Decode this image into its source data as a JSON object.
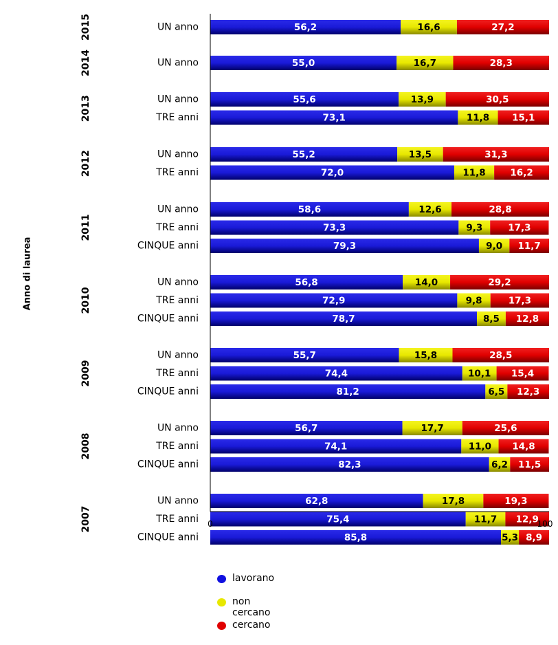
{
  "chart_data": {
    "type": "bar",
    "orientation": "horizontal",
    "stacked": true,
    "ylabel": "Anno di laurea",
    "xlim": [
      0,
      100
    ],
    "x_ticks": [
      "0",
      "100"
    ],
    "legend_position": "bottom-left",
    "colors": {
      "lavorano": "#1010e0",
      "non cercano": "#e8e800",
      "cercano": "#e00000"
    },
    "series_names": [
      "lavorano",
      "non cercano",
      "cercano"
    ],
    "groups": [
      {
        "year": "2015",
        "rows": [
          {
            "label": "UN anno",
            "values": [
              56.2,
              16.6,
              27.2
            ],
            "texts": [
              "56,2",
              "16,6",
              "27,2"
            ]
          }
        ]
      },
      {
        "year": "2014",
        "rows": [
          {
            "label": "UN anno",
            "values": [
              55.0,
              16.7,
              28.3
            ],
            "texts": [
              "55,0",
              "16,7",
              "28,3"
            ]
          }
        ]
      },
      {
        "year": "2013",
        "rows": [
          {
            "label": "UN anno",
            "values": [
              55.6,
              13.9,
              30.5
            ],
            "texts": [
              "55,6",
              "13,9",
              "30,5"
            ]
          },
          {
            "label": "TRE anni",
            "values": [
              73.1,
              11.8,
              15.1
            ],
            "texts": [
              "73,1",
              "11,8",
              "15,1"
            ]
          }
        ]
      },
      {
        "year": "2012",
        "rows": [
          {
            "label": "UN anno",
            "values": [
              55.2,
              13.5,
              31.3
            ],
            "texts": [
              "55,2",
              "13,5",
              "31,3"
            ]
          },
          {
            "label": "TRE anni",
            "values": [
              72.0,
              11.8,
              16.2
            ],
            "texts": [
              "72,0",
              "11,8",
              "16,2"
            ]
          }
        ]
      },
      {
        "year": "2011",
        "rows": [
          {
            "label": "UN anno",
            "values": [
              58.6,
              12.6,
              28.8
            ],
            "texts": [
              "58,6",
              "12,6",
              "28,8"
            ]
          },
          {
            "label": "TRE anni",
            "values": [
              73.3,
              9.3,
              17.3
            ],
            "texts": [
              "73,3",
              "9,3",
              "17,3"
            ]
          },
          {
            "label": "CINQUE anni",
            "values": [
              79.3,
              9.0,
              11.7
            ],
            "texts": [
              "79,3",
              "9,0",
              "11,7"
            ]
          }
        ]
      },
      {
        "year": "2010",
        "rows": [
          {
            "label": "UN anno",
            "values": [
              56.8,
              14.0,
              29.2
            ],
            "texts": [
              "56,8",
              "14,0",
              "29,2"
            ]
          },
          {
            "label": "TRE anni",
            "values": [
              72.9,
              9.8,
              17.3
            ],
            "texts": [
              "72,9",
              "9,8",
              "17,3"
            ]
          },
          {
            "label": "CINQUE anni",
            "values": [
              78.7,
              8.5,
              12.8
            ],
            "texts": [
              "78,7",
              "8,5",
              "12,8"
            ]
          }
        ]
      },
      {
        "year": "2009",
        "rows": [
          {
            "label": "UN anno",
            "values": [
              55.7,
              15.8,
              28.5
            ],
            "texts": [
              "55,7",
              "15,8",
              "28,5"
            ]
          },
          {
            "label": "TRE anni",
            "values": [
              74.4,
              10.1,
              15.4
            ],
            "texts": [
              "74,4",
              "10,1",
              "15,4"
            ]
          },
          {
            "label": "CINQUE anni",
            "values": [
              81.2,
              6.5,
              12.3
            ],
            "texts": [
              "81,2",
              "6,5",
              "12,3"
            ]
          }
        ]
      },
      {
        "year": "2008",
        "rows": [
          {
            "label": "UN anno",
            "values": [
              56.7,
              17.7,
              25.6
            ],
            "texts": [
              "56,7",
              "17,7",
              "25,6"
            ]
          },
          {
            "label": "TRE anni",
            "values": [
              74.1,
              11.0,
              14.8
            ],
            "texts": [
              "74,1",
              "11,0",
              "14,8"
            ]
          },
          {
            "label": "CINQUE anni",
            "values": [
              82.3,
              6.2,
              11.5
            ],
            "texts": [
              "82,3",
              "6,2",
              "11,5"
            ]
          }
        ]
      },
      {
        "year": "2007",
        "rows": [
          {
            "label": "UN anno",
            "values": [
              62.8,
              17.8,
              19.3
            ],
            "texts": [
              "62,8",
              "17,8",
              "19,3"
            ]
          },
          {
            "label": "TRE anni",
            "values": [
              75.4,
              11.7,
              12.9
            ],
            "texts": [
              "75,4",
              "11,7",
              "12,9"
            ]
          },
          {
            "label": "CINQUE anni",
            "values": [
              85.8,
              5.3,
              8.9
            ],
            "texts": [
              "85,8",
              "5,3",
              "8,9"
            ]
          }
        ]
      }
    ]
  }
}
